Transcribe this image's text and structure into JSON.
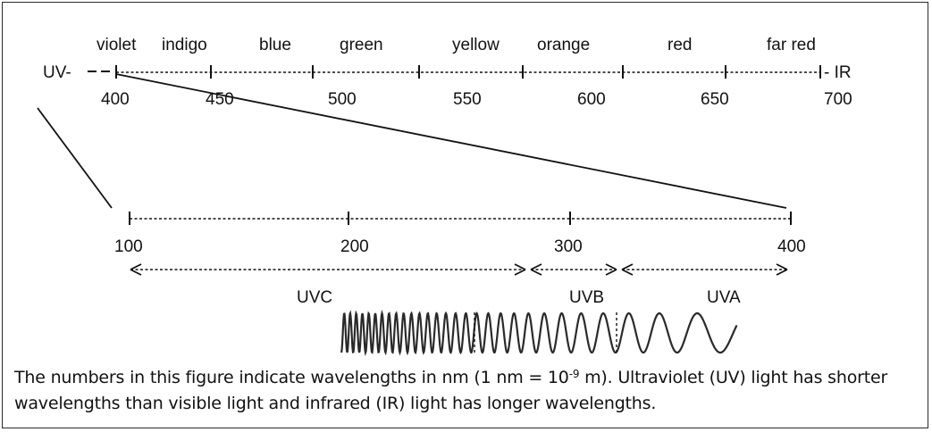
{
  "visible_spectrum": {
    "left_end": "UV-",
    "right_end": "- IR",
    "colors": [
      "violet",
      "indigo",
      "blue",
      "green",
      "yellow",
      "orange",
      "red",
      "far red"
    ],
    "ticks": [
      "400",
      "450",
      "500",
      "550",
      "600",
      "650",
      "700"
    ]
  },
  "uv_spectrum": {
    "ticks": [
      "100",
      "200",
      "300",
      "400"
    ],
    "bands": [
      "UVC",
      "UVB",
      "UVA"
    ]
  },
  "caption": {
    "part1": "The numbers in this figure indicate wavelengths in nm (1 nm = 10",
    "exponent": "-9",
    "part2": " m). Ultraviolet (UV) light has shorter wavelengths than visible light and infrared (IR) light has longer wavelengths."
  }
}
